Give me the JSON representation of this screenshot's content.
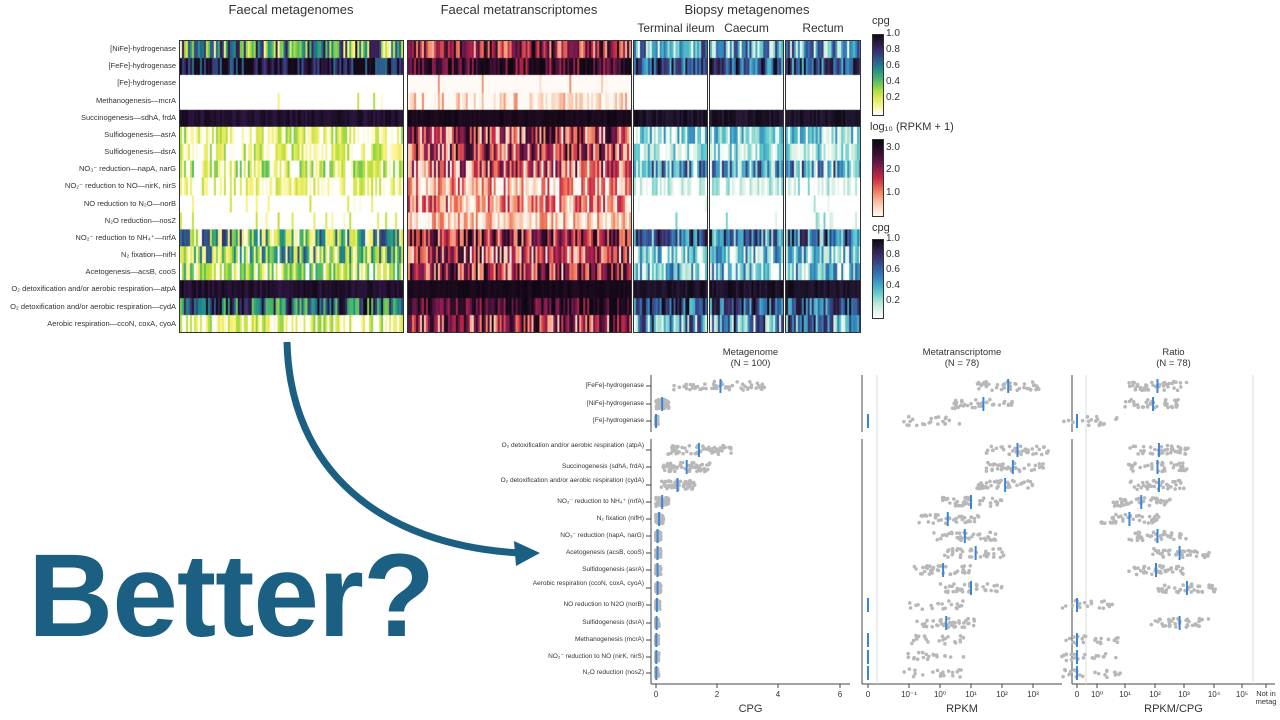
{
  "heatmap": {
    "titles": {
      "metagenomes": "Faecal metagenomes",
      "metatranscriptomes": "Faecal metatranscriptomes",
      "biopsy": "Biopsy metagenomes"
    },
    "biopsy_sites": [
      "Terminal ileum",
      "Caecum",
      "Rectum"
    ],
    "rows": [
      {
        "label": "[NiFe]-hydrogenase",
        "metag": 0.5,
        "metat": 0.6,
        "biopsy": 0.4
      },
      {
        "label": "[FeFe]-hydrogenase",
        "metag": 0.9,
        "metat": 0.8,
        "biopsy": 0.7
      },
      {
        "label": "[Fe]-hydrogenase",
        "metag": 0.0,
        "metat": 0.02,
        "biopsy": 0.0
      },
      {
        "label": "Methanogenesis—mcrA",
        "metag": 0.01,
        "metat": 0.05,
        "biopsy": 0.0
      },
      {
        "label": "Succinogenesis—sdhA, frdA",
        "metag": 0.95,
        "metat": 0.95,
        "biopsy": 0.95
      },
      {
        "label": "Sulfidogenesis—asrA",
        "metag": 0.1,
        "metat": 0.5,
        "biopsy": 0.2
      },
      {
        "label": "Sulfidogenesis—dsrA",
        "metag": 0.1,
        "metat": 0.5,
        "biopsy": 0.15
      },
      {
        "label": "NO₃⁻ reduction—napA, narG",
        "metag": 0.15,
        "metat": 0.4,
        "biopsy": 0.4
      },
      {
        "label": "NO₂⁻ reduction to NO—nirK, nirS",
        "metag": 0.05,
        "metat": 0.2,
        "biopsy": 0.05
      },
      {
        "label": "NO reduction to N₂O—norB",
        "metag": 0.03,
        "metat": 0.25,
        "biopsy": 0.02
      },
      {
        "label": "N₂O reduction—nosZ",
        "metag": 0.03,
        "metat": 0.1,
        "biopsy": 0.02
      },
      {
        "label": "NO₂⁻ reduction to NH₄⁺—nrfA",
        "metag": 0.4,
        "metat": 0.6,
        "biopsy": 0.6
      },
      {
        "label": "N₂ fixation—nifH",
        "metag": 0.35,
        "metat": 0.45,
        "biopsy": 0.3
      },
      {
        "label": "Acetogenesis—acsB, cooS",
        "metag": 0.2,
        "metat": 0.55,
        "biopsy": 0.3
      },
      {
        "label": "O₂ detoxification and/or aerobic respiration—atpA",
        "metag": 1.0,
        "metat": 0.97,
        "biopsy": 0.97
      },
      {
        "label": "O₂ detoxification and/or aerobic respiration—cydA",
        "metag": 0.7,
        "metat": 0.85,
        "biopsy": 0.7
      },
      {
        "label": "Aerobic respiration—ccoN, coxA, cyoA",
        "metag": 0.1,
        "metat": 0.55,
        "biopsy": 0.5
      }
    ],
    "legends": [
      {
        "title": "cpg",
        "ticks": [
          "1.0",
          "0.8",
          "0.6",
          "0.4",
          "0.2"
        ]
      },
      {
        "title": "log₁₀ (RPKM + 1)",
        "ticks": [
          "3.0",
          "2.0",
          "1.0"
        ]
      },
      {
        "title": "cpg",
        "ticks": [
          "1.0",
          "0.8",
          "0.6",
          "0.4",
          "0.2"
        ]
      }
    ]
  },
  "headline": "Better?",
  "colors": {
    "headline": "#1b5f83",
    "median": "#3a86d6",
    "dots": "#b8b8b8"
  },
  "chart_data": {
    "type": "scatter",
    "panels": [
      {
        "title": "Metagenome",
        "subtitle": "(N = 100)",
        "xlabel": "CPG",
        "scale": "linear",
        "xlim": [
          0,
          6
        ],
        "ticks": [
          "0",
          "2",
          "4",
          "6"
        ]
      },
      {
        "title": "Metatranscriptome",
        "subtitle": "(N = 78)",
        "xlabel": "RPKM",
        "scale": "log",
        "ticks": [
          "0",
          "10⁻¹",
          "10⁰",
          "10¹",
          "10²",
          "10³"
        ]
      },
      {
        "title": "Ratio",
        "subtitle": "(N = 78)",
        "xlabel": "RPKM/CPG",
        "scale": "log",
        "ticks": [
          "0",
          "10⁰",
          "10¹",
          "10²",
          "10³",
          "10⁴",
          "10⁵",
          "Not in metag"
        ]
      }
    ],
    "groups": [
      {
        "rows": [
          {
            "label": "[FeFe]-hydrogenase",
            "median": [
              2.1,
              2.2,
              2.05
            ]
          },
          {
            "label": "[NiFe]-hydrogenase",
            "median": [
              0.2,
              1.4,
              1.9
            ]
          },
          {
            "label": "[Fe]-hydrogenase",
            "median": [
              0,
              null,
              null
            ]
          }
        ]
      },
      {
        "rows": [
          {
            "label": "O₂ detoxification and/or aerobic respiration (atpA)",
            "median": [
              1.4,
              2.5,
              2.1
            ]
          },
          {
            "label": "Succinogenesis (sdhA, frdA)",
            "median": [
              1.0,
              2.35,
              2.05
            ]
          },
          {
            "label": "O₂ detoxification and/or aerobic respiration (cydA)",
            "median": [
              0.7,
              2.1,
              2.1
            ]
          },
          {
            "label": "NO₂⁻ reduction to NH₄⁺ (nrfA)",
            "median": [
              0.2,
              1.0,
              1.5
            ]
          },
          {
            "label": "N₂ fixation (nifH)",
            "median": [
              0.1,
              0.25,
              1.1
            ]
          },
          {
            "label": "NO₃⁻ reduction (napA, narG)",
            "median": [
              0.05,
              0.8,
              2.05
            ]
          },
          {
            "label": "Acetogenesis (acsB, cooS)",
            "median": [
              0.05,
              1.15,
              2.8
            ]
          },
          {
            "label": "Sulfidogenesis (asrA)",
            "median": [
              0.05,
              0.1,
              2.0
            ]
          },
          {
            "label": "Aerobic respiration (ccoN, coxA, cyoA)",
            "median": [
              0.05,
              1.0,
              3.05
            ]
          },
          {
            "label": "NO reduction to N2O (norB)",
            "median": [
              0.03,
              null,
              null
            ]
          },
          {
            "label": "Sulfidogenesis (dsrA)",
            "median": [
              0.02,
              0.2,
              2.8
            ]
          },
          {
            "label": "Methanogenesis (mcrA)",
            "median": [
              0.01,
              null,
              null
            ]
          },
          {
            "label": "NO₂⁻ reduction to NO (nirK, nirS)",
            "median": [
              0.01,
              null,
              null
            ]
          },
          {
            "label": "N₂O reduction (nosZ)",
            "median": [
              0.01,
              null,
              null
            ]
          }
        ]
      }
    ]
  }
}
